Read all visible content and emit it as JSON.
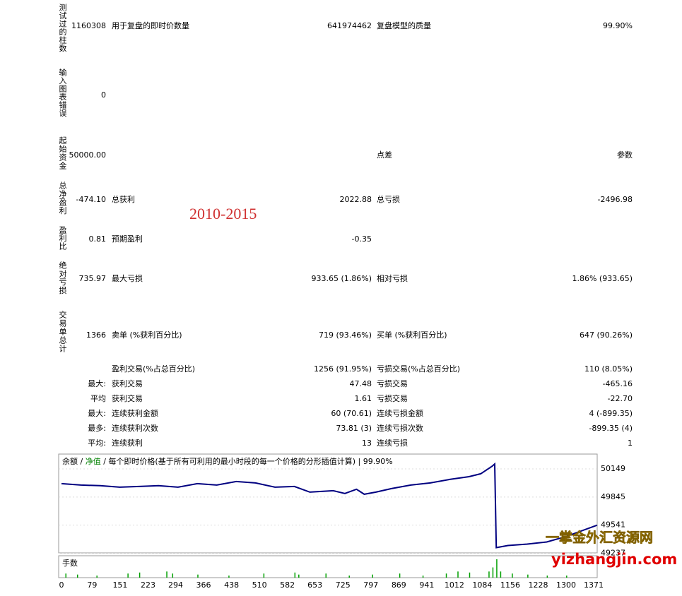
{
  "report": {
    "rows": [
      {
        "label": "测试过的柱数",
        "value": "1160308",
        "left": {
          "label": "用于复盘的即时价数量",
          "value": "641974462"
        },
        "right": {
          "label": "复盘模型的质量",
          "value": "99.90%"
        }
      },
      {
        "label": "输入图表错误",
        "value": "0"
      },
      {
        "label": "起始资金",
        "value": "50000.00",
        "right": {
          "label": "点差",
          "value": "参数"
        }
      },
      {
        "label": "总净盈利",
        "value": "-474.10",
        "left": {
          "label": "总获利",
          "value": "2022.88"
        },
        "right": {
          "label": "总亏损",
          "value": "-2496.98"
        }
      },
      {
        "label": "盈利比",
        "value": "0.81",
        "left": {
          "label": "预期盈利",
          "value": "-0.35"
        }
      },
      {
        "label": "绝对亏损",
        "value": "735.97",
        "left": {
          "label": "最大亏损",
          "value": "933.65 (1.86%)"
        },
        "right": {
          "label": "相对亏损",
          "value": "1.86% (933.65)"
        }
      },
      {
        "label": "交易单总计",
        "value": "1366",
        "left": {
          "label": "卖单 (%获利百分比)",
          "value": "719 (93.46%)"
        },
        "right": {
          "label": "买单 (%获利百分比)",
          "value": "647 (90.26%)"
        }
      }
    ],
    "stats": [
      {
        "left": {
          "label": "盈利交易(%占总百分比)",
          "value": "1256 (91.95%)"
        },
        "right": {
          "label": "亏损交易(%占总百分比)",
          "value": "110 (8.05%)"
        }
      },
      {
        "prefix": "最大:",
        "left": {
          "label": "获利交易",
          "value": "47.48"
        },
        "right": {
          "label": "亏损交易",
          "value": "-465.16"
        }
      },
      {
        "prefix": "平均",
        "left": {
          "label": "获利交易",
          "value": "1.61"
        },
        "right": {
          "label": "亏损交易",
          "value": "-22.70"
        }
      },
      {
        "prefix": "最大:",
        "left": {
          "label": "连续获利金额",
          "value": "60 (70.61)"
        },
        "right": {
          "label": "连续亏损金额",
          "value": "4 (-899.35)"
        }
      },
      {
        "prefix": "最多:",
        "left": {
          "label": "连续获利次数",
          "value": "73.81 (3)"
        },
        "right": {
          "label": "连续亏损次数",
          "value": "-899.35 (4)"
        }
      },
      {
        "prefix": "平均:",
        "left": {
          "label": "连续获利",
          "value": "13"
        },
        "right": {
          "label": "连续亏损",
          "value": "1"
        }
      }
    ]
  },
  "annotation": "2010-2015",
  "watermark": {
    "name": "一掌金外汇资源网",
    "url": "yizhangjin.com"
  },
  "chart_data": {
    "type": "line",
    "subtitle": "每个即时价格(基于所有可利用的最小时段的每一个价格的分形插值计算)",
    "quality": "99.90%",
    "x": [
      0,
      50,
      100,
      150,
      200,
      250,
      300,
      350,
      400,
      450,
      500,
      550,
      600,
      640,
      700,
      730,
      760,
      780,
      810,
      850,
      900,
      950,
      1000,
      1050,
      1080,
      1110,
      1116,
      1120,
      1150,
      1200,
      1250,
      1300,
      1380
    ],
    "series": [
      {
        "name": "余额",
        "color": "#000080",
        "values": [
          49989,
          49974,
          49967,
          49951,
          49959,
          49967,
          49951,
          49989,
          49974,
          50012,
          49997,
          49951,
          49959,
          49898,
          49913,
          49883,
          49929,
          49875,
          49898,
          49936,
          49974,
          49997,
          50035,
          50065,
          50096,
          50179,
          50202,
          49298,
          49321,
          49336,
          49359,
          49419,
          49541
        ]
      },
      {
        "name": "净值",
        "color": "#008000",
        "values": [
          49989,
          49974,
          49967,
          49951,
          49959,
          49967,
          49951,
          49989,
          49974,
          50012,
          49997,
          49951,
          49959,
          49898,
          49913,
          49883,
          49929,
          49875,
          49898,
          49936,
          49974,
          49997,
          50035,
          50065,
          50096,
          50179,
          50202,
          49298,
          49321,
          49336,
          49359,
          49419,
          49541
        ]
      }
    ],
    "xlim": [
      0,
      1380
    ],
    "ylim": [
      49241,
      50309
    ],
    "yticks": [
      49237,
      49541,
      49845,
      50149
    ],
    "xticks": [
      0,
      79,
      151,
      223,
      294,
      366,
      438,
      510,
      582,
      653,
      725,
      797,
      869,
      941,
      1012,
      1084,
      1156,
      1228,
      1300,
      1371
    ],
    "volume": {
      "label": "手数",
      "color": "#00a000",
      "ylim": [
        0,
        1
      ],
      "x": [
        10,
        40,
        90,
        170,
        200,
        270,
        285,
        350,
        430,
        520,
        600,
        610,
        680,
        740,
        800,
        870,
        930,
        990,
        1020,
        1050,
        1100,
        1110,
        1120,
        1130,
        1160,
        1200,
        1250,
        1300
      ],
      "values": [
        0.2,
        0.15,
        0.1,
        0.2,
        0.25,
        0.3,
        0.2,
        0.15,
        0.1,
        0.2,
        0.25,
        0.15,
        0.2,
        0.1,
        0.15,
        0.2,
        0.1,
        0.2,
        0.3,
        0.25,
        0.3,
        0.5,
        0.9,
        0.3,
        0.2,
        0.15,
        0.1,
        0.1
      ]
    }
  }
}
